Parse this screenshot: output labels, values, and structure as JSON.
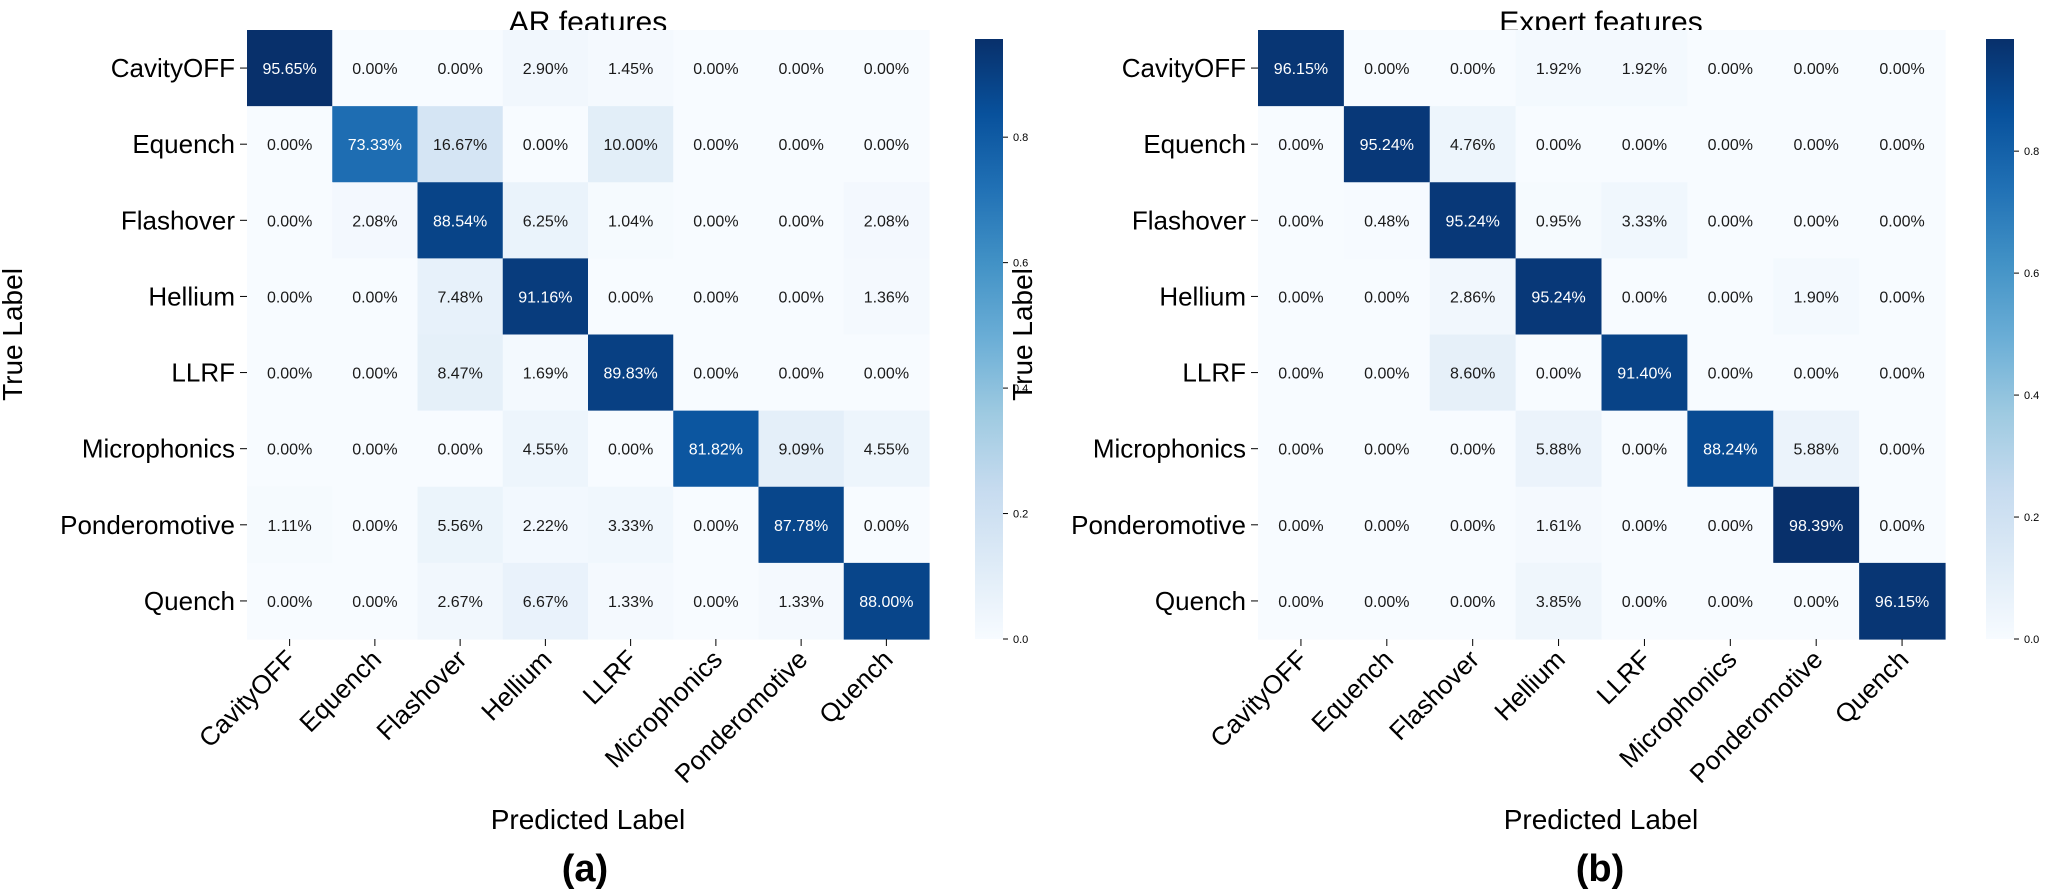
{
  "chart_data": [
    {
      "type": "heatmap",
      "title": "AR features",
      "xlabel": "Predicted Label",
      "ylabel": "True Label",
      "panel_label": "(a)",
      "categories": [
        "CavityOFF",
        "Equench",
        "Flashover",
        "Hellium",
        "LLRF",
        "Microphonics",
        "Ponderomotive",
        "Quench"
      ],
      "values": [
        [
          95.65,
          0.0,
          0.0,
          2.9,
          1.45,
          0.0,
          0.0,
          0.0
        ],
        [
          0.0,
          73.33,
          16.67,
          0.0,
          10.0,
          0.0,
          0.0,
          0.0
        ],
        [
          0.0,
          2.08,
          88.54,
          6.25,
          1.04,
          0.0,
          0.0,
          2.08
        ],
        [
          0.0,
          0.0,
          7.48,
          91.16,
          0.0,
          0.0,
          0.0,
          1.36
        ],
        [
          0.0,
          0.0,
          8.47,
          1.69,
          89.83,
          0.0,
          0.0,
          0.0
        ],
        [
          0.0,
          0.0,
          0.0,
          4.55,
          0.0,
          81.82,
          9.09,
          4.55
        ],
        [
          1.11,
          0.0,
          5.56,
          2.22,
          3.33,
          0.0,
          87.78,
          0.0
        ],
        [
          0.0,
          0.0,
          2.67,
          6.67,
          1.33,
          0.0,
          1.33,
          88.0
        ]
      ],
      "colorbar": {
        "min": 0.0,
        "max": 0.9565,
        "ticks": [
          "0.0",
          "0.2",
          "0.4",
          "0.6",
          "0.8"
        ]
      }
    },
    {
      "type": "heatmap",
      "title": "Expert features",
      "xlabel": "Predicted Label",
      "ylabel": "True Label",
      "panel_label": "(b)",
      "categories": [
        "CavityOFF",
        "Equench",
        "Flashover",
        "Hellium",
        "LLRF",
        "Microphonics",
        "Ponderomotive",
        "Quench"
      ],
      "values": [
        [
          96.15,
          0.0,
          0.0,
          1.92,
          1.92,
          0.0,
          0.0,
          0.0
        ],
        [
          0.0,
          95.24,
          4.76,
          0.0,
          0.0,
          0.0,
          0.0,
          0.0
        ],
        [
          0.0,
          0.48,
          95.24,
          0.95,
          3.33,
          0.0,
          0.0,
          0.0
        ],
        [
          0.0,
          0.0,
          2.86,
          95.24,
          0.0,
          0.0,
          1.9,
          0.0
        ],
        [
          0.0,
          0.0,
          8.6,
          0.0,
          91.4,
          0.0,
          0.0,
          0.0
        ],
        [
          0.0,
          0.0,
          0.0,
          5.88,
          0.0,
          88.24,
          5.88,
          0.0
        ],
        [
          0.0,
          0.0,
          0.0,
          1.61,
          0.0,
          0.0,
          98.39,
          0.0
        ],
        [
          0.0,
          0.0,
          0.0,
          3.85,
          0.0,
          0.0,
          0.0,
          96.15
        ]
      ],
      "colorbar": {
        "min": 0.0,
        "max": 0.9839,
        "ticks": [
          "0.0",
          "0.2",
          "0.4",
          "0.6",
          "0.8"
        ]
      }
    }
  ]
}
